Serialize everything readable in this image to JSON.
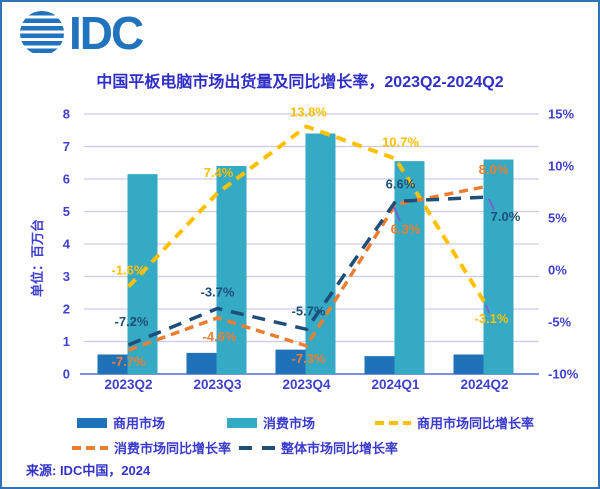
{
  "logo": {
    "text": "IDC",
    "color": "#2173BE"
  },
  "title": {
    "text": "中国平板电脑市场出货量及同比增长率，2023Q2-2024Q2",
    "color": "#2F2FC7"
  },
  "chart_data": {
    "type": "combo-bar-line",
    "categories": [
      "2023Q2",
      "2023Q3",
      "2023Q4",
      "2024Q1",
      "2024Q2"
    ],
    "bar_series": [
      {
        "key": "commercial",
        "name": "商用市场",
        "color": "#2072B8",
        "values": [
          0.6,
          0.65,
          0.75,
          0.55,
          0.6
        ]
      },
      {
        "key": "consumer",
        "name": "消费市场",
        "color": "#35AAC4",
        "values": [
          6.15,
          6.4,
          7.4,
          6.55,
          6.6
        ]
      }
    ],
    "line_series": [
      {
        "key": "commercial-yoy",
        "name": "商用市场同比增长率",
        "color": "#FFC000",
        "values": [
          -1.6,
          7.4,
          13.8,
          10.7,
          -3.1
        ],
        "labels": [
          "-1.6%",
          "7.4%",
          "13.8%",
          "10.7%",
          "-3.1%"
        ]
      },
      {
        "key": "consumer-yoy",
        "name": "消费市场同比增长率",
        "color": "#ED7D31",
        "values": [
          -7.7,
          -4.6,
          -7.3,
          6.3,
          8.0
        ],
        "labels": [
          "-7.7%",
          "-4.6%",
          "-7.3%",
          "6.3%",
          "8.0%"
        ]
      },
      {
        "key": "overall-yoy",
        "name": "整体市场同比增长率",
        "color": "#1F4E79",
        "values": [
          -7.2,
          -3.7,
          -5.7,
          6.6,
          7.0
        ],
        "labels": [
          "-7.2%",
          "-3.7%",
          "-5.7%",
          "6.6%",
          "7.0%"
        ]
      }
    ],
    "left_axis": {
      "title": "单位：百万台",
      "min": 0,
      "max": 8,
      "ticks": [
        "0",
        "1",
        "2",
        "3",
        "4",
        "5",
        "6",
        "7",
        "8"
      ]
    },
    "right_axis": {
      "min": -10,
      "max": 15,
      "ticks": [
        "15%",
        "10%",
        "5%",
        "0%",
        "-5%",
        "-10%"
      ]
    },
    "grid": true,
    "gridline_color": "#C9C9F2",
    "baseline_color": "#7C90DC",
    "axis_text_color": "#4040CF",
    "leader_color": "#7A5FD0",
    "legend_position": "bottom"
  },
  "legend": {
    "rows": [
      [
        {
          "type": "bar",
          "dash": "none",
          "label": "商用市场",
          "color": "#2072B8"
        },
        {
          "type": "bar",
          "dash": "none",
          "label": "消费市场",
          "color": "#35AAC4"
        },
        {
          "type": "line",
          "dash": "short",
          "label": "商用市场同比增长率",
          "color": "#FFC000"
        }
      ],
      [
        {
          "type": "line",
          "dash": "short",
          "label": "消费市场同比增长率",
          "color": "#ED7D31"
        },
        {
          "type": "line",
          "dash": "long",
          "label": "整体市场同比增长率",
          "color": "#1F4E79"
        }
      ]
    ]
  },
  "source": {
    "text": "来源: IDC中国，2024"
  }
}
